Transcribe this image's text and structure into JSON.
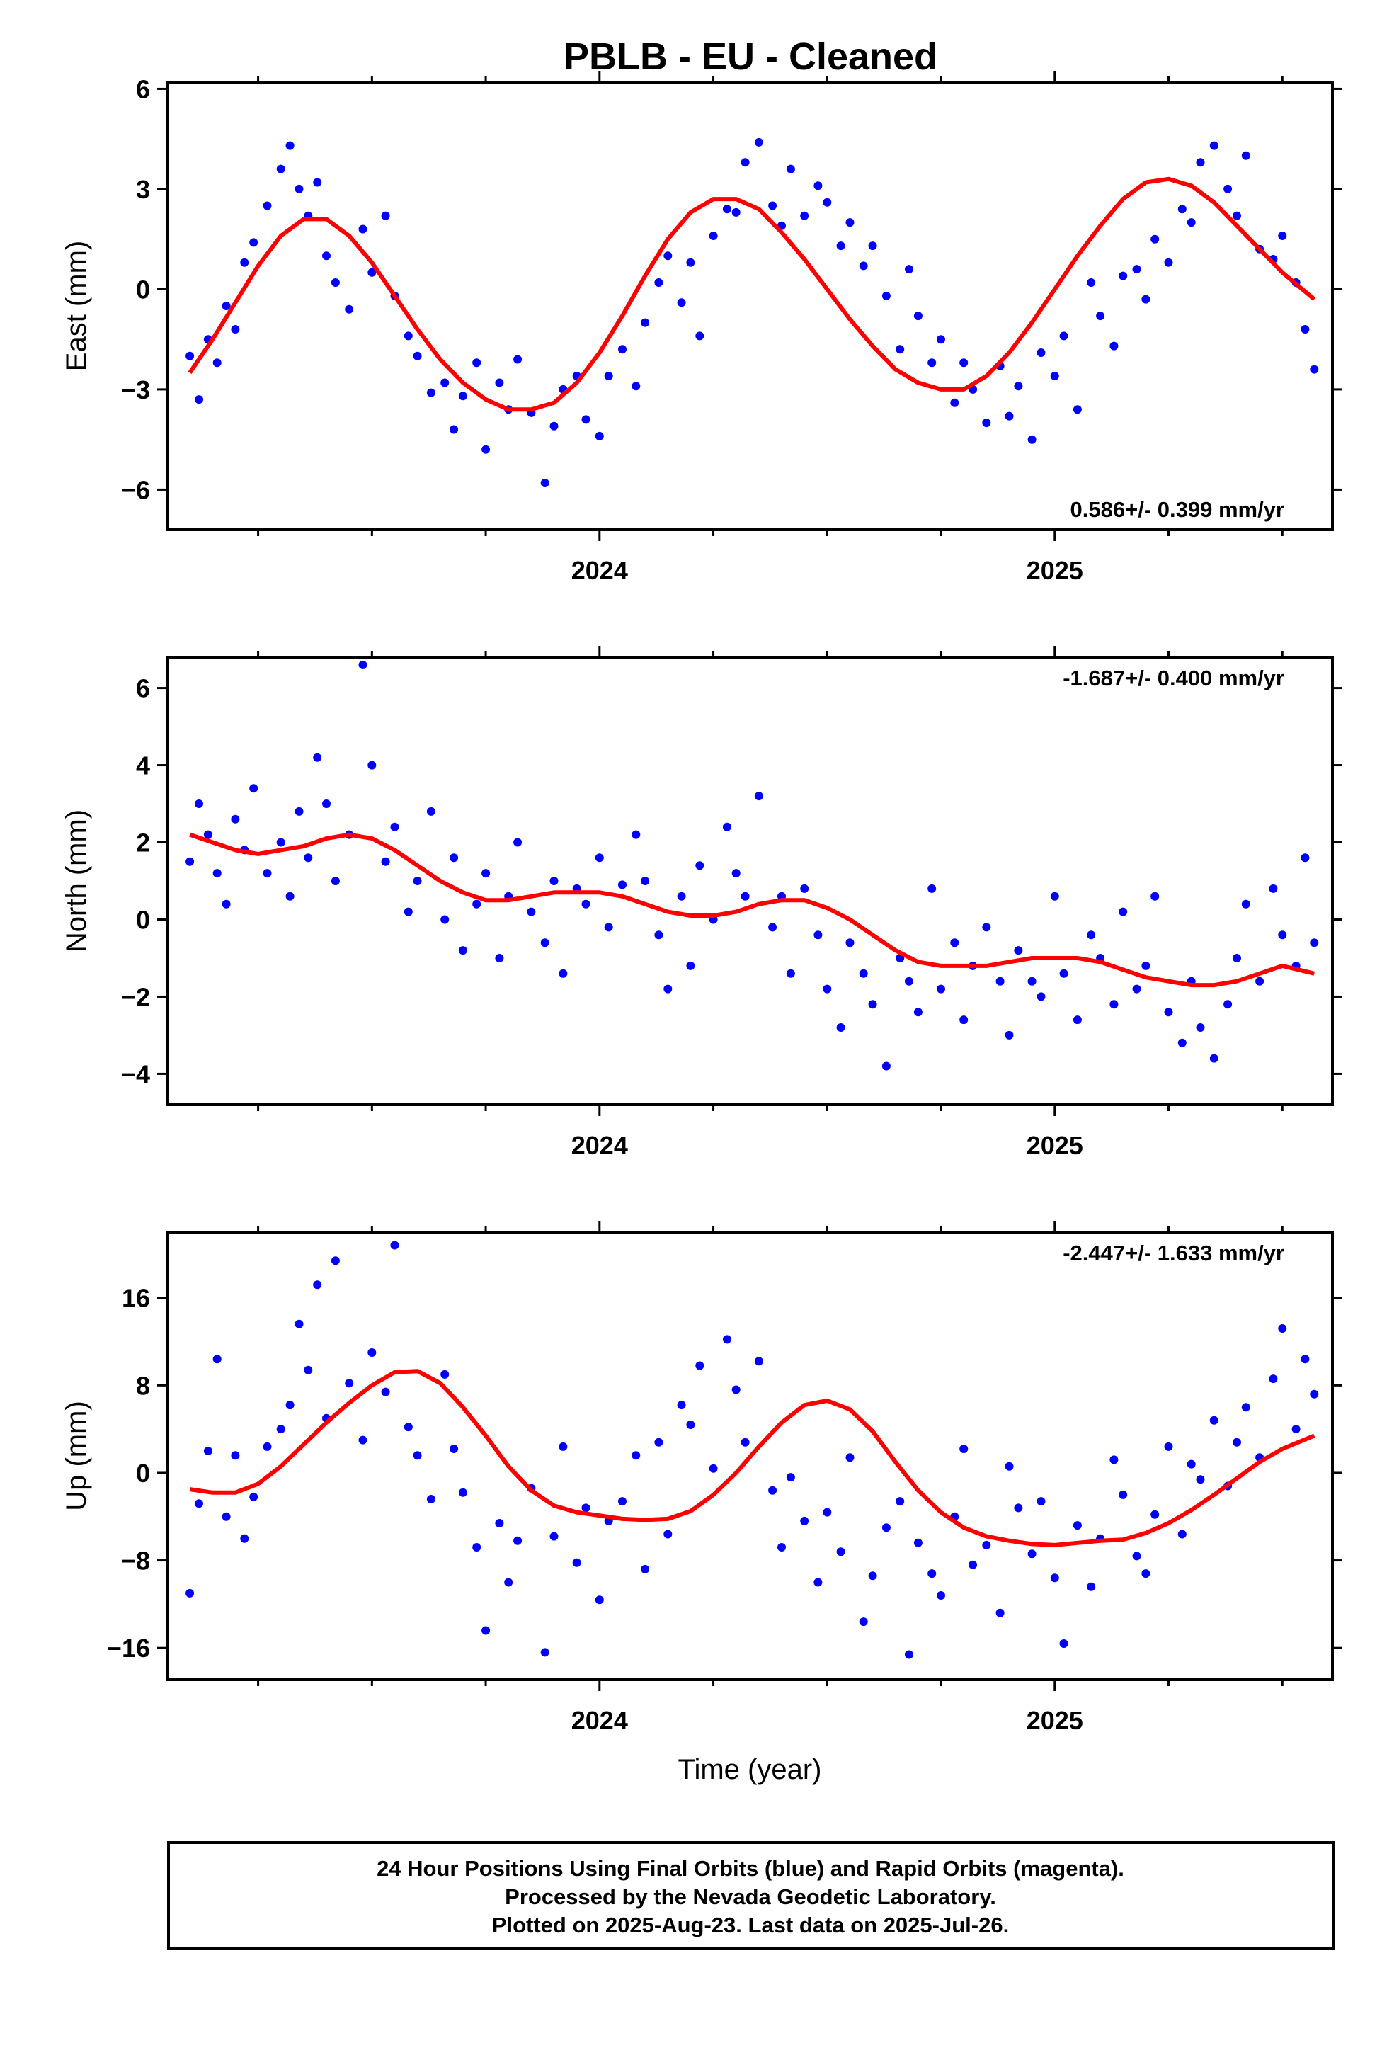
{
  "title": "PBLB  - EU - Cleaned",
  "footer": {
    "line1": "24 Hour Positions Using Final Orbits (blue) and Rapid Orbits (magenta).",
    "line2": "Processed by the Nevada Geodetic Laboratory.",
    "line3": "Plotted on 2025-Aug-23. Last data on 2025-Jul-26."
  },
  "colors": {
    "points": "#0000ff",
    "fit": "#ff0000",
    "axes": "#000000"
  },
  "chart_data": [
    {
      "type": "scatter",
      "ylabel": "East (mm)",
      "xlabel": "",
      "rate": "0.586+/- 0.399 mm/yr",
      "xlim": [
        2023.05,
        2025.61
      ],
      "ylim": [
        -7.2,
        6.2
      ],
      "yticks": [
        6,
        3,
        0,
        -3,
        -6
      ],
      "xticks": [
        2024,
        2025
      ],
      "x": [
        2023.1,
        2023.12,
        2023.14,
        2023.16,
        2023.18,
        2023.2,
        2023.22,
        2023.24,
        2023.27,
        2023.3,
        2023.32,
        2023.34,
        2023.36,
        2023.38,
        2023.4,
        2023.42,
        2023.45,
        2023.48,
        2023.5,
        2023.53,
        2023.55,
        2023.58,
        2023.6,
        2023.63,
        2023.66,
        2023.68,
        2023.7,
        2023.73,
        2023.75,
        2023.78,
        2023.8,
        2023.82,
        2023.85,
        2023.88,
        2023.9,
        2023.92,
        2023.95,
        2023.97,
        2024.0,
        2024.02,
        2024.05,
        2024.08,
        2024.1,
        2024.13,
        2024.15,
        2024.18,
        2024.2,
        2024.22,
        2024.25,
        2024.28,
        2024.3,
        2024.32,
        2024.35,
        2024.38,
        2024.4,
        2024.42,
        2024.45,
        2024.48,
        2024.5,
        2024.53,
        2024.55,
        2024.58,
        2024.6,
        2024.63,
        2024.66,
        2024.68,
        2024.7,
        2024.73,
        2024.75,
        2024.78,
        2024.8,
        2024.82,
        2024.85,
        2024.88,
        2024.9,
        2024.92,
        2024.95,
        2024.97,
        2025.0,
        2025.02,
        2025.05,
        2025.08,
        2025.1,
        2025.13,
        2025.15,
        2025.18,
        2025.2,
        2025.22,
        2025.25,
        2025.28,
        2025.3,
        2025.32,
        2025.35,
        2025.38,
        2025.4,
        2025.42,
        2025.45,
        2025.48,
        2025.5,
        2025.53,
        2025.55,
        2025.57
      ],
      "y": [
        -2.0,
        -3.3,
        -1.5,
        -2.2,
        -0.5,
        -1.2,
        0.8,
        1.4,
        2.5,
        3.6,
        4.3,
        3.0,
        2.2,
        3.2,
        1.0,
        0.2,
        -0.6,
        1.8,
        0.5,
        2.2,
        -0.2,
        -1.4,
        -2.0,
        -3.1,
        -2.8,
        -4.2,
        -3.2,
        -2.2,
        -4.8,
        -2.8,
        -3.6,
        -2.1,
        -3.7,
        -5.8,
        -4.1,
        -3.0,
        -2.6,
        -3.9,
        -4.4,
        -2.6,
        -1.8,
        -2.9,
        -1.0,
        0.2,
        1.0,
        -0.4,
        0.8,
        -1.4,
        1.6,
        2.4,
        2.3,
        3.8,
        4.4,
        2.5,
        1.9,
        3.6,
        2.2,
        3.1,
        2.6,
        1.3,
        2.0,
        0.7,
        1.3,
        -0.2,
        -1.8,
        0.6,
        -0.8,
        -2.2,
        -1.5,
        -3.4,
        -2.2,
        -3.0,
        -4.0,
        -2.3,
        -3.8,
        -2.9,
        -4.5,
        -1.9,
        -2.6,
        -1.4,
        -3.6,
        0.2,
        -0.8,
        -1.7,
        0.4,
        0.6,
        -0.3,
        1.5,
        0.8,
        2.4,
        2.0,
        3.8,
        4.3,
        3.0,
        2.2,
        4.0,
        1.2,
        0.9,
        1.6,
        0.2,
        -1.2,
        -2.4
      ],
      "fit_x": [
        2023.1,
        2023.15,
        2023.2,
        2023.25,
        2023.3,
        2023.35,
        2023.4,
        2023.45,
        2023.5,
        2023.55,
        2023.6,
        2023.65,
        2023.7,
        2023.75,
        2023.8,
        2023.85,
        2023.9,
        2023.95,
        2024.0,
        2024.05,
        2024.1,
        2024.15,
        2024.2,
        2024.25,
        2024.3,
        2024.35,
        2024.4,
        2024.45,
        2024.5,
        2024.55,
        2024.6,
        2024.65,
        2024.7,
        2024.75,
        2024.8,
        2024.85,
        2024.9,
        2024.95,
        2025.0,
        2025.05,
        2025.1,
        2025.15,
        2025.2,
        2025.25,
        2025.3,
        2025.35,
        2025.4,
        2025.45,
        2025.5,
        2025.57
      ],
      "fit_y": [
        -2.5,
        -1.5,
        -0.4,
        0.7,
        1.6,
        2.1,
        2.1,
        1.6,
        0.8,
        -0.2,
        -1.2,
        -2.1,
        -2.8,
        -3.3,
        -3.6,
        -3.6,
        -3.4,
        -2.8,
        -1.9,
        -0.8,
        0.4,
        1.5,
        2.3,
        2.7,
        2.7,
        2.4,
        1.7,
        0.9,
        0.0,
        -0.9,
        -1.7,
        -2.4,
        -2.8,
        -3.0,
        -3.0,
        -2.6,
        -1.9,
        -1.0,
        0.0,
        1.0,
        1.9,
        2.7,
        3.2,
        3.3,
        3.1,
        2.6,
        1.9,
        1.2,
        0.5,
        -0.3
      ]
    },
    {
      "type": "scatter",
      "ylabel": "North (mm)",
      "xlabel": "",
      "rate": "-1.687+/- 0.400 mm/yr",
      "xlim": [
        2023.05,
        2025.61
      ],
      "ylim": [
        -4.8,
        6.8
      ],
      "yticks": [
        6,
        4,
        2,
        0,
        -2,
        -4
      ],
      "xticks": [
        2024,
        2025
      ],
      "x": [
        2023.1,
        2023.12,
        2023.14,
        2023.16,
        2023.18,
        2023.2,
        2023.22,
        2023.24,
        2023.27,
        2023.3,
        2023.32,
        2023.34,
        2023.36,
        2023.38,
        2023.4,
        2023.42,
        2023.45,
        2023.48,
        2023.5,
        2023.53,
        2023.55,
        2023.58,
        2023.6,
        2023.63,
        2023.66,
        2023.68,
        2023.7,
        2023.73,
        2023.75,
        2023.78,
        2023.8,
        2023.82,
        2023.85,
        2023.88,
        2023.9,
        2023.92,
        2023.95,
        2023.97,
        2024.0,
        2024.02,
        2024.05,
        2024.08,
        2024.1,
        2024.13,
        2024.15,
        2024.18,
        2024.2,
        2024.22,
        2024.25,
        2024.28,
        2024.3,
        2024.32,
        2024.35,
        2024.38,
        2024.4,
        2024.42,
        2024.45,
        2024.48,
        2024.5,
        2024.53,
        2024.55,
        2024.58,
        2024.6,
        2024.63,
        2024.66,
        2024.68,
        2024.7,
        2024.73,
        2024.75,
        2024.78,
        2024.8,
        2024.82,
        2024.85,
        2024.88,
        2024.9,
        2024.92,
        2024.95,
        2024.97,
        2025.0,
        2025.02,
        2025.05,
        2025.08,
        2025.1,
        2025.13,
        2025.15,
        2025.18,
        2025.2,
        2025.22,
        2025.25,
        2025.28,
        2025.3,
        2025.32,
        2025.35,
        2025.38,
        2025.4,
        2025.42,
        2025.45,
        2025.48,
        2025.5,
        2025.53,
        2025.55,
        2025.57
      ],
      "y": [
        1.5,
        3.0,
        2.2,
        1.2,
        0.4,
        2.6,
        1.8,
        3.4,
        1.2,
        2.0,
        0.6,
        2.8,
        1.6,
        4.2,
        3.0,
        1.0,
        2.2,
        6.6,
        4.0,
        1.5,
        2.4,
        0.2,
        1.0,
        2.8,
        0.0,
        1.6,
        -0.8,
        0.4,
        1.2,
        -1.0,
        0.6,
        2.0,
        0.2,
        -0.6,
        1.0,
        -1.4,
        0.8,
        0.4,
        1.6,
        -0.2,
        0.9,
        2.2,
        1.0,
        -0.4,
        -1.8,
        0.6,
        -1.2,
        1.4,
        0.0,
        2.4,
        1.2,
        0.6,
        3.2,
        -0.2,
        0.6,
        -1.4,
        0.8,
        -0.4,
        -1.8,
        -2.8,
        -0.6,
        -1.4,
        -2.2,
        -3.8,
        -1.0,
        -1.6,
        -2.4,
        0.8,
        -1.8,
        -0.6,
        -2.6,
        -1.2,
        -0.2,
        -1.6,
        -3.0,
        -0.8,
        -1.6,
        -2.0,
        0.6,
        -1.4,
        -2.6,
        -0.4,
        -1.0,
        -2.2,
        0.2,
        -1.8,
        -1.2,
        0.6,
        -2.4,
        -3.2,
        -1.6,
        -2.8,
        -3.6,
        -2.2,
        -1.0,
        0.4,
        -1.6,
        0.8,
        -0.4,
        -1.2,
        1.6,
        -0.6
      ],
      "fit_x": [
        2023.1,
        2023.15,
        2023.2,
        2023.25,
        2023.3,
        2023.35,
        2023.4,
        2023.45,
        2023.5,
        2023.55,
        2023.6,
        2023.65,
        2023.7,
        2023.75,
        2023.8,
        2023.85,
        2023.9,
        2023.95,
        2024.0,
        2024.05,
        2024.1,
        2024.15,
        2024.2,
        2024.25,
        2024.3,
        2024.35,
        2024.4,
        2024.45,
        2024.5,
        2024.55,
        2024.6,
        2024.65,
        2024.7,
        2024.75,
        2024.8,
        2024.85,
        2024.9,
        2024.95,
        2025.0,
        2025.05,
        2025.1,
        2025.15,
        2025.2,
        2025.25,
        2025.3,
        2025.35,
        2025.4,
        2025.45,
        2025.5,
        2025.57
      ],
      "fit_y": [
        2.2,
        2.0,
        1.8,
        1.7,
        1.8,
        1.9,
        2.1,
        2.2,
        2.1,
        1.8,
        1.4,
        1.0,
        0.7,
        0.5,
        0.5,
        0.6,
        0.7,
        0.7,
        0.7,
        0.6,
        0.4,
        0.2,
        0.1,
        0.1,
        0.2,
        0.4,
        0.5,
        0.5,
        0.3,
        0.0,
        -0.4,
        -0.8,
        -1.1,
        -1.2,
        -1.2,
        -1.2,
        -1.1,
        -1.0,
        -1.0,
        -1.0,
        -1.1,
        -1.3,
        -1.5,
        -1.6,
        -1.7,
        -1.7,
        -1.6,
        -1.4,
        -1.2,
        -1.4
      ]
    },
    {
      "type": "scatter",
      "ylabel": "Up (mm)",
      "xlabel": "Time (year)",
      "rate": "-2.447+/- 1.633 mm/yr",
      "xlim": [
        2023.05,
        2025.61
      ],
      "ylim": [
        -18.9,
        22.0
      ],
      "yticks": [
        16,
        8,
        0,
        -8,
        -16
      ],
      "xticks": [
        2024,
        2025
      ],
      "x": [
        2023.1,
        2023.12,
        2023.14,
        2023.16,
        2023.18,
        2023.2,
        2023.22,
        2023.24,
        2023.27,
        2023.3,
        2023.32,
        2023.34,
        2023.36,
        2023.38,
        2023.4,
        2023.42,
        2023.45,
        2023.48,
        2023.5,
        2023.53,
        2023.55,
        2023.58,
        2023.6,
        2023.63,
        2023.66,
        2023.68,
        2023.7,
        2023.73,
        2023.75,
        2023.78,
        2023.8,
        2023.82,
        2023.85,
        2023.88,
        2023.9,
        2023.92,
        2023.95,
        2023.97,
        2024.0,
        2024.02,
        2024.05,
        2024.08,
        2024.1,
        2024.13,
        2024.15,
        2024.18,
        2024.2,
        2024.22,
        2024.25,
        2024.28,
        2024.3,
        2024.32,
        2024.35,
        2024.38,
        2024.4,
        2024.42,
        2024.45,
        2024.48,
        2024.5,
        2024.53,
        2024.55,
        2024.58,
        2024.6,
        2024.63,
        2024.66,
        2024.68,
        2024.7,
        2024.73,
        2024.75,
        2024.78,
        2024.8,
        2024.82,
        2024.85,
        2024.88,
        2024.9,
        2024.92,
        2024.95,
        2024.97,
        2025.0,
        2025.02,
        2025.05,
        2025.08,
        2025.1,
        2025.13,
        2025.15,
        2025.18,
        2025.2,
        2025.22,
        2025.25,
        2025.28,
        2025.3,
        2025.32,
        2025.35,
        2025.38,
        2025.4,
        2025.42,
        2025.45,
        2025.48,
        2025.5,
        2025.53,
        2025.55,
        2025.57
      ],
      "y": [
        -11.0,
        -2.8,
        2.0,
        10.4,
        -4.0,
        1.6,
        -6.0,
        -2.2,
        2.4,
        4.0,
        6.2,
        13.6,
        9.4,
        17.2,
        5.0,
        19.4,
        8.2,
        3.0,
        11.0,
        7.4,
        20.8,
        4.2,
        1.6,
        -2.4,
        9.0,
        2.2,
        -1.8,
        -6.8,
        -14.4,
        -4.6,
        -10.0,
        -6.2,
        -1.4,
        -16.4,
        -5.8,
        2.4,
        -8.2,
        -3.2,
        -11.6,
        -4.4,
        -2.6,
        1.6,
        -8.8,
        2.8,
        -5.6,
        6.2,
        4.4,
        9.8,
        0.4,
        12.2,
        7.6,
        2.8,
        10.2,
        -1.6,
        -6.8,
        -0.4,
        -4.4,
        -10.0,
        -3.6,
        -7.2,
        1.4,
        -13.6,
        -9.4,
        -5.0,
        -2.6,
        -16.6,
        -6.4,
        -9.2,
        -11.2,
        -4.0,
        2.2,
        -8.4,
        -6.6,
        -12.8,
        0.6,
        -3.2,
        -7.4,
        -2.6,
        -9.6,
        -15.6,
        -4.8,
        -10.4,
        -6.0,
        1.2,
        -2.0,
        -7.6,
        -9.2,
        -3.8,
        2.4,
        -5.6,
        0.8,
        -0.6,
        4.8,
        -1.2,
        2.8,
        6.0,
        1.4,
        8.6,
        13.2,
        4.0,
        10.4,
        7.2
      ],
      "fit_x": [
        2023.1,
        2023.15,
        2023.2,
        2023.25,
        2023.3,
        2023.35,
        2023.4,
        2023.45,
        2023.5,
        2023.55,
        2023.6,
        2023.65,
        2023.7,
        2023.75,
        2023.8,
        2023.85,
        2023.9,
        2023.95,
        2024.0,
        2024.05,
        2024.1,
        2024.15,
        2024.2,
        2024.25,
        2024.3,
        2024.35,
        2024.4,
        2024.45,
        2024.5,
        2024.55,
        2024.6,
        2024.65,
        2024.7,
        2024.75,
        2024.8,
        2024.85,
        2024.9,
        2024.95,
        2025.0,
        2025.05,
        2025.1,
        2025.15,
        2025.2,
        2025.25,
        2025.3,
        2025.35,
        2025.4,
        2025.45,
        2025.5,
        2025.57
      ],
      "fit_y": [
        -1.5,
        -1.8,
        -1.8,
        -1.0,
        0.6,
        2.6,
        4.6,
        6.4,
        8.0,
        9.2,
        9.3,
        8.2,
        6.0,
        3.4,
        0.6,
        -1.6,
        -3.0,
        -3.6,
        -3.9,
        -4.2,
        -4.3,
        -4.2,
        -3.5,
        -2.0,
        0.0,
        2.4,
        4.6,
        6.2,
        6.6,
        5.8,
        3.8,
        1.0,
        -1.6,
        -3.6,
        -5.0,
        -5.8,
        -6.2,
        -6.5,
        -6.6,
        -6.4,
        -6.2,
        -6.1,
        -5.5,
        -4.6,
        -3.4,
        -2.0,
        -0.5,
        1.0,
        2.2,
        3.4
      ]
    }
  ]
}
